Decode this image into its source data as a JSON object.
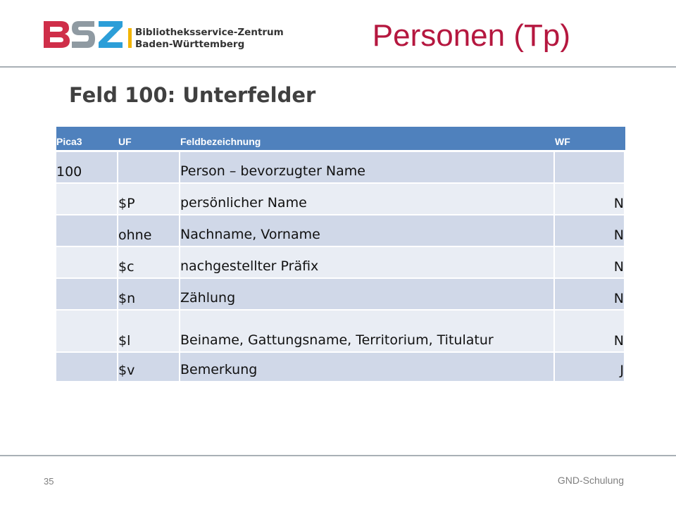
{
  "header": {
    "logo_line1": "Bibliotheksservice-Zentrum",
    "logo_line2": "Baden-Württemberg",
    "title": "Personen (Tp)"
  },
  "heading": "Feld 100: Unterfelder",
  "table": {
    "columns": [
      "Pica3",
      "UF",
      "Feldbezeichnung",
      "WF"
    ],
    "rows": [
      [
        "100",
        "",
        "Person – bevorzugter Name",
        ""
      ],
      [
        "",
        "$P",
        "persönlicher Name",
        "N"
      ],
      [
        "",
        "ohne",
        "Nachname, Vorname",
        "N"
      ],
      [
        "",
        "$c",
        "nachgestellter Präfix",
        "N"
      ],
      [
        "",
        "$n",
        "Zählung",
        "N"
      ],
      [
        "",
        "$l",
        "Beiname, Gattungsname, Territorium, Titulatur",
        "N"
      ],
      [
        "",
        "$v",
        "Bemerkung",
        "J"
      ]
    ]
  },
  "footer": {
    "page_number": "35",
    "label": "GND-Schulung"
  },
  "colors": {
    "title": "#b5173f",
    "header_row": "#4f81bd",
    "row_dark": "#d0d8e8",
    "row_light": "#e9edf4",
    "logo_b": "#cf2e49",
    "logo_s": "#b9b9b9",
    "logo_z": "#2c9ed8",
    "logo_bar": "#f2b400"
  }
}
